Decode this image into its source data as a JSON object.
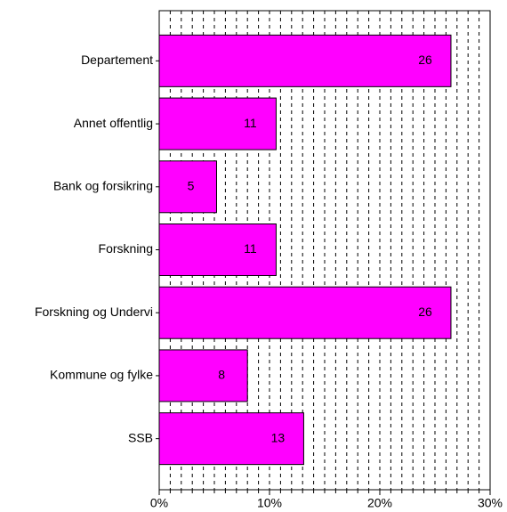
{
  "chart_data": {
    "type": "bar",
    "orientation": "horizontal",
    "categories": [
      "Departement",
      "Annet offentlig",
      "Bank og forsikring",
      "Forskning",
      "Forskning og Undervi",
      "Kommune og fylke",
      "SSB"
    ],
    "values": [
      26.45,
      10.6,
      5.2,
      10.6,
      26.45,
      8.0,
      13.1
    ],
    "value_labels": [
      "26",
      "11",
      "5",
      "11",
      "26",
      "8",
      "13"
    ],
    "color": "#ff00ff",
    "xlim": [
      0,
      30
    ],
    "xticks": [
      {
        "value": 0,
        "label": "0%"
      },
      {
        "value": 10,
        "label": "10%"
      },
      {
        "value": 20,
        "label": "20%"
      },
      {
        "value": 30,
        "label": "30%"
      }
    ],
    "grid": true
  }
}
